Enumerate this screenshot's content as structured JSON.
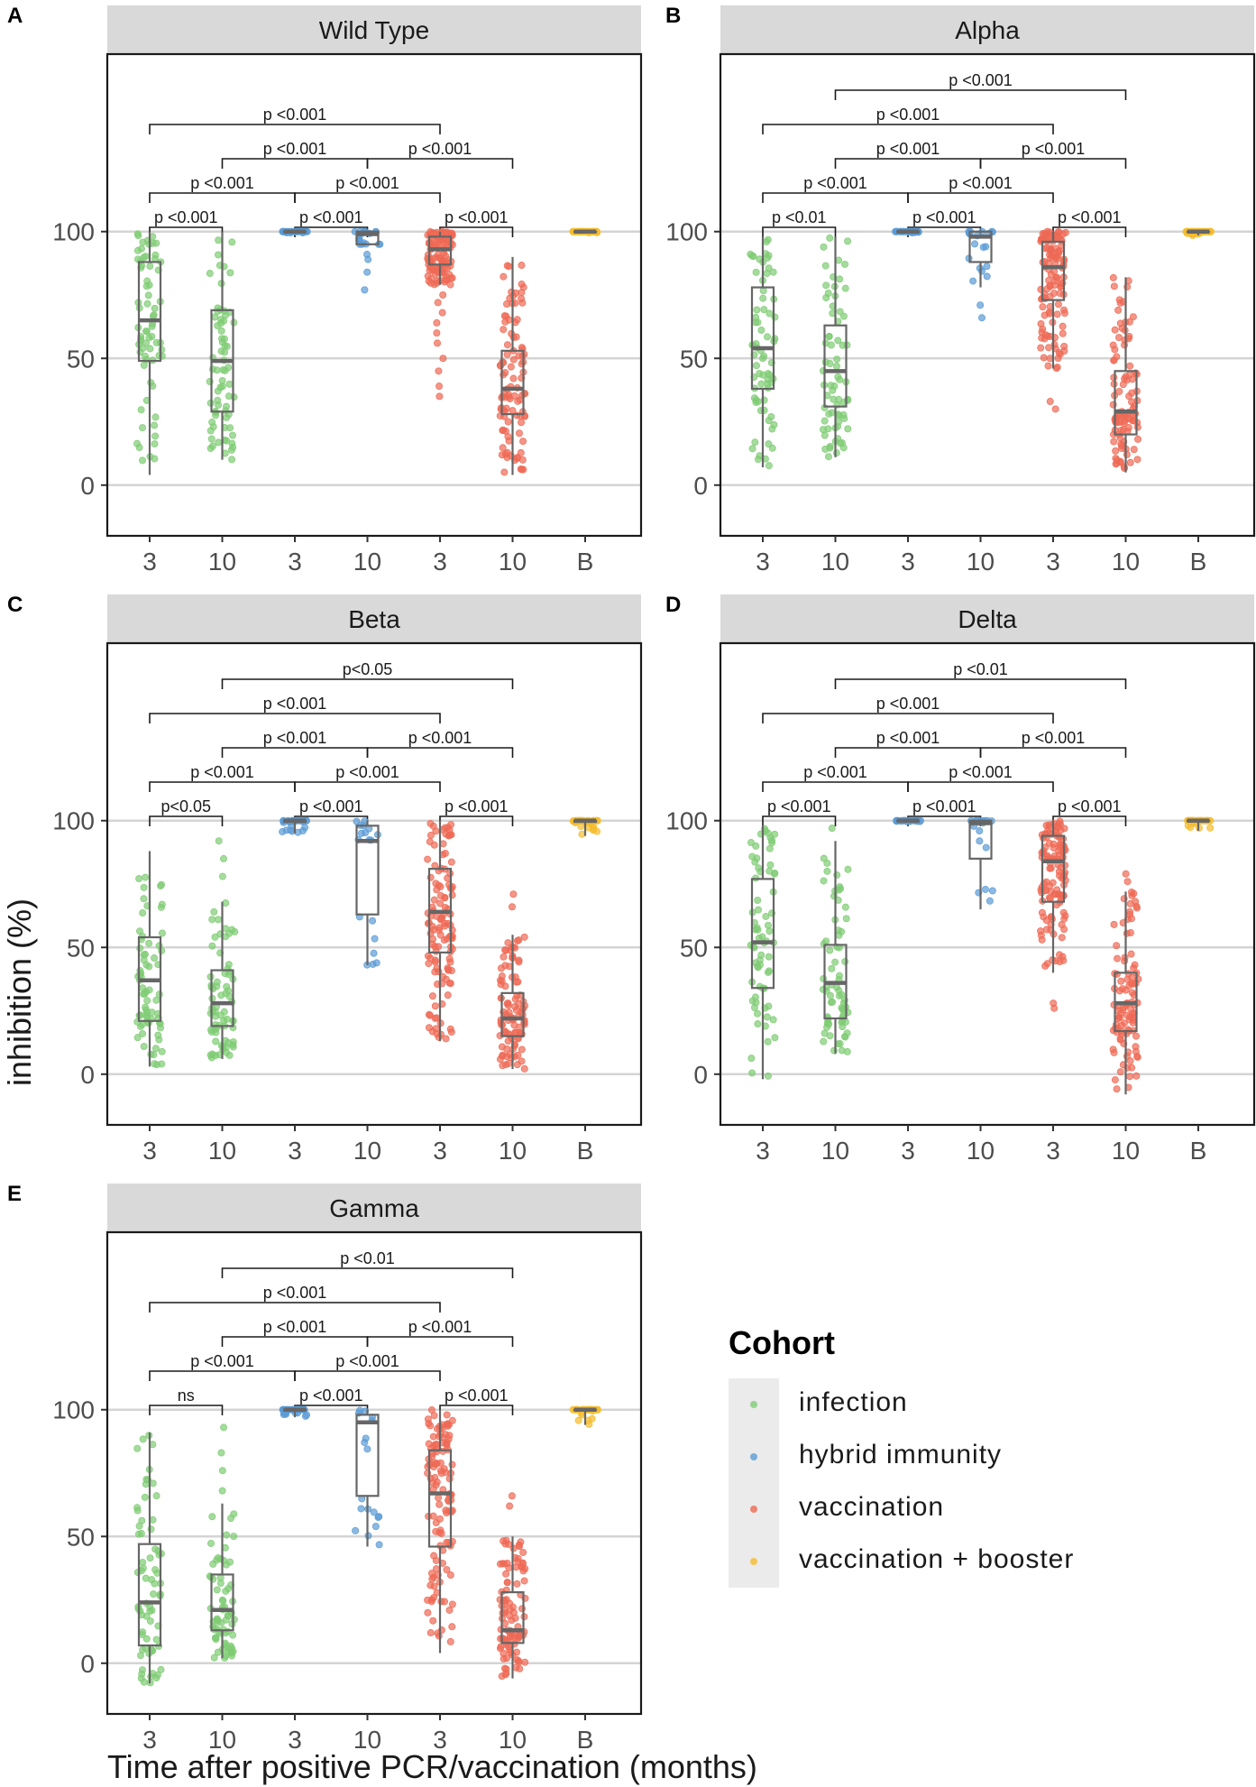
{
  "cohort_colors": {
    "infection": "#7fcc74",
    "hybrid immunity": "#5b9bd5",
    "vaccination": "#ee6a55",
    "vaccination + booster": "#f5bc2e"
  },
  "y_axis_label": "inhibition (%)",
  "x_axis_label": "Time after positive PCR/vaccination (months)",
  "legend": {
    "title": "Cohort",
    "items": [
      {
        "label": "infection",
        "color": "#7fcc74"
      },
      {
        "label": "hybrid immunity",
        "color": "#5b9bd5"
      },
      {
        "label": "vaccination",
        "color": "#ee6a55"
      },
      {
        "label": "vaccination + booster",
        "color": "#f5bc2e"
      }
    ]
  },
  "chart_data": [
    {
      "letter": "A",
      "title": "Wild Type",
      "type": "box",
      "categories": [
        "3",
        "10",
        "3",
        "10",
        "3",
        "10",
        "B"
      ],
      "cohorts": [
        "infection",
        "infection",
        "hybrid immunity",
        "hybrid immunity",
        "vaccination",
        "vaccination",
        "vaccination + booster"
      ],
      "y_ticks": [
        0,
        50,
        100
      ],
      "ylim": [
        -20,
        170
      ],
      "boxes": [
        {
          "min": 4,
          "q1": 49,
          "median": 65,
          "q3": 88,
          "max": 100,
          "n": 70,
          "outliers": []
        },
        {
          "min": 10,
          "q1": 29,
          "median": 49,
          "q3": 69,
          "max": 100,
          "n": 70,
          "outliers": []
        },
        {
          "min": 99.5,
          "q1": 100,
          "median": 100,
          "q3": 100,
          "max": 100,
          "n": 30,
          "outliers": []
        },
        {
          "min": 95,
          "q1": 95,
          "median": 99,
          "q3": 100,
          "max": 100,
          "n": 18,
          "outliers": [
            77,
            84,
            89,
            91
          ]
        },
        {
          "min": 79,
          "q1": 87,
          "median": 93,
          "q3": 98,
          "max": 100,
          "n": 120,
          "outliers": [
            35,
            39,
            45,
            50,
            56,
            60,
            64,
            68,
            72,
            75
          ]
        },
        {
          "min": 4,
          "q1": 28,
          "median": 38,
          "q3": 53,
          "max": 90,
          "n": 100,
          "outliers": []
        },
        {
          "min": 99.5,
          "q1": 100,
          "median": 100,
          "q3": 100,
          "max": 100,
          "n": 40,
          "outliers": []
        }
      ],
      "comparisons": [
        {
          "from": 0,
          "to": 1,
          "level": 0,
          "label": "p <0.001"
        },
        {
          "from": 2,
          "to": 3,
          "level": 0,
          "label": "p <0.001"
        },
        {
          "from": 4,
          "to": 5,
          "level": 0,
          "label": "p <0.001"
        },
        {
          "from": 0,
          "to": 2,
          "level": 1,
          "label": "p <0.001"
        },
        {
          "from": 2,
          "to": 4,
          "level": 1,
          "label": "p <0.001"
        },
        {
          "from": 1,
          "to": 3,
          "level": 2,
          "label": "p <0.001"
        },
        {
          "from": 3,
          "to": 5,
          "level": 2,
          "label": "p <0.001"
        },
        {
          "from": 0,
          "to": 4,
          "level": 3,
          "label": "p <0.001"
        }
      ]
    },
    {
      "letter": "B",
      "title": "Alpha",
      "type": "box",
      "categories": [
        "3",
        "10",
        "3",
        "10",
        "3",
        "10",
        "B"
      ],
      "cohorts": [
        "infection",
        "infection",
        "hybrid immunity",
        "hybrid immunity",
        "vaccination",
        "vaccination",
        "vaccination + booster"
      ],
      "y_ticks": [
        0,
        50,
        100
      ],
      "ylim": [
        -20,
        170
      ],
      "boxes": [
        {
          "min": 7,
          "q1": 38,
          "median": 54,
          "q3": 78,
          "max": 98,
          "n": 70,
          "outliers": []
        },
        {
          "min": 11,
          "q1": 31,
          "median": 45,
          "q3": 63,
          "max": 98,
          "n": 70,
          "outliers": []
        },
        {
          "min": 99.5,
          "q1": 100,
          "median": 100,
          "q3": 100,
          "max": 100,
          "n": 30,
          "outliers": []
        },
        {
          "min": 78,
          "q1": 88,
          "median": 98,
          "q3": 100,
          "max": 100,
          "n": 18,
          "outliers": [
            66,
            71
          ]
        },
        {
          "min": 46,
          "q1": 73,
          "median": 86,
          "q3": 96,
          "max": 100,
          "n": 120,
          "outliers": [
            30,
            33
          ]
        },
        {
          "min": 5,
          "q1": 20,
          "median": 29,
          "q3": 45,
          "max": 82,
          "n": 100,
          "outliers": []
        },
        {
          "min": 98.5,
          "q1": 100,
          "median": 100,
          "q3": 100,
          "max": 100,
          "n": 40,
          "outliers": []
        }
      ],
      "comparisons": [
        {
          "from": 0,
          "to": 1,
          "level": 0,
          "label": "p <0.01"
        },
        {
          "from": 2,
          "to": 3,
          "level": 0,
          "label": "p <0.001"
        },
        {
          "from": 4,
          "to": 5,
          "level": 0,
          "label": "p <0.001"
        },
        {
          "from": 0,
          "to": 2,
          "level": 1,
          "label": "p <0.001"
        },
        {
          "from": 2,
          "to": 4,
          "level": 1,
          "label": "p <0.001"
        },
        {
          "from": 1,
          "to": 3,
          "level": 2,
          "label": "p <0.001"
        },
        {
          "from": 3,
          "to": 5,
          "level": 2,
          "label": "p <0.001"
        },
        {
          "from": 0,
          "to": 4,
          "level": 3,
          "label": "p <0.001"
        },
        {
          "from": 1,
          "to": 5,
          "level": 4,
          "label": "p <0.001"
        }
      ]
    },
    {
      "letter": "C",
      "title": "Beta",
      "type": "box",
      "categories": [
        "3",
        "10",
        "3",
        "10",
        "3",
        "10",
        "B"
      ],
      "cohorts": [
        "infection",
        "infection",
        "hybrid immunity",
        "hybrid immunity",
        "vaccination",
        "vaccination",
        "vaccination + booster"
      ],
      "y_ticks": [
        0,
        50,
        100
      ],
      "ylim": [
        -20,
        170
      ],
      "boxes": [
        {
          "min": 3,
          "q1": 21,
          "median": 37,
          "q3": 54,
          "max": 88,
          "n": 70,
          "outliers": []
        },
        {
          "min": 6,
          "q1": 19,
          "median": 28,
          "q3": 41,
          "max": 68,
          "n": 70,
          "outliers": [
            78,
            85,
            92
          ]
        },
        {
          "min": 95,
          "q1": 99.5,
          "median": 100,
          "q3": 100,
          "max": 100,
          "n": 30,
          "outliers": []
        },
        {
          "min": 43,
          "q1": 63,
          "median": 92,
          "q3": 98,
          "max": 100,
          "n": 18,
          "outliers": []
        },
        {
          "min": 13,
          "q1": 48,
          "median": 64,
          "q3": 81,
          "max": 100,
          "n": 120,
          "outliers": []
        },
        {
          "min": 2,
          "q1": 15,
          "median": 22,
          "q3": 32,
          "max": 55,
          "n": 100,
          "outliers": [
            66,
            71
          ]
        },
        {
          "min": 94,
          "q1": 99.5,
          "median": 100,
          "q3": 100,
          "max": 100,
          "n": 40,
          "outliers": []
        }
      ],
      "comparisons": [
        {
          "from": 0,
          "to": 1,
          "level": 0,
          "label": "p<0.05"
        },
        {
          "from": 2,
          "to": 3,
          "level": 0,
          "label": "p <0.001"
        },
        {
          "from": 4,
          "to": 5,
          "level": 0,
          "label": "p <0.001"
        },
        {
          "from": 0,
          "to": 2,
          "level": 1,
          "label": "p <0.001"
        },
        {
          "from": 2,
          "to": 4,
          "level": 1,
          "label": "p <0.001"
        },
        {
          "from": 1,
          "to": 3,
          "level": 2,
          "label": "p <0.001"
        },
        {
          "from": 3,
          "to": 5,
          "level": 2,
          "label": "p <0.001"
        },
        {
          "from": 0,
          "to": 4,
          "level": 3,
          "label": "p <0.001"
        },
        {
          "from": 1,
          "to": 5,
          "level": 4,
          "label": "p<0.05"
        }
      ]
    },
    {
      "letter": "D",
      "title": "Delta",
      "type": "box",
      "categories": [
        "3",
        "10",
        "3",
        "10",
        "3",
        "10",
        "B"
      ],
      "cohorts": [
        "infection",
        "infection",
        "hybrid immunity",
        "hybrid immunity",
        "vaccination",
        "vaccination",
        "vaccination + booster"
      ],
      "y_ticks": [
        0,
        50,
        100
      ],
      "ylim": [
        -20,
        170
      ],
      "boxes": [
        {
          "min": -2,
          "q1": 34,
          "median": 52,
          "q3": 77,
          "max": 98,
          "n": 70,
          "outliers": []
        },
        {
          "min": 8,
          "q1": 22,
          "median": 36,
          "q3": 51,
          "max": 92,
          "n": 70,
          "outliers": [
            97
          ]
        },
        {
          "min": 99.5,
          "q1": 100,
          "median": 100,
          "q3": 100,
          "max": 100,
          "n": 30,
          "outliers": []
        },
        {
          "min": 65,
          "q1": 85,
          "median": 99,
          "q3": 100,
          "max": 100,
          "n": 18,
          "outliers": []
        },
        {
          "min": 40,
          "q1": 68,
          "median": 84,
          "q3": 94,
          "max": 100,
          "n": 120,
          "outliers": [
            26,
            28
          ]
        },
        {
          "min": -8,
          "q1": 17,
          "median": 28,
          "q3": 40,
          "max": 72,
          "n": 100,
          "outliers": [
            76,
            79
          ]
        },
        {
          "min": 96,
          "q1": 100,
          "median": 100,
          "q3": 100,
          "max": 100,
          "n": 40,
          "outliers": []
        }
      ],
      "comparisons": [
        {
          "from": 0,
          "to": 1,
          "level": 0,
          "label": "p <0.001"
        },
        {
          "from": 2,
          "to": 3,
          "level": 0,
          "label": "p <0.001"
        },
        {
          "from": 4,
          "to": 5,
          "level": 0,
          "label": "p <0.001"
        },
        {
          "from": 0,
          "to": 2,
          "level": 1,
          "label": "p <0.001"
        },
        {
          "from": 2,
          "to": 4,
          "level": 1,
          "label": "p <0.001"
        },
        {
          "from": 1,
          "to": 3,
          "level": 2,
          "label": "p <0.001"
        },
        {
          "from": 3,
          "to": 5,
          "level": 2,
          "label": "p <0.001"
        },
        {
          "from": 0,
          "to": 4,
          "level": 3,
          "label": "p <0.001"
        },
        {
          "from": 1,
          "to": 5,
          "level": 4,
          "label": "p <0.01"
        }
      ]
    },
    {
      "letter": "E",
      "title": "Gamma",
      "type": "box",
      "categories": [
        "3",
        "10",
        "3",
        "10",
        "3",
        "10",
        "B"
      ],
      "cohorts": [
        "infection",
        "infection",
        "hybrid immunity",
        "hybrid immunity",
        "vaccination",
        "vaccination",
        "vaccination + booster"
      ],
      "y_ticks": [
        0,
        50,
        100
      ],
      "ylim": [
        -20,
        170
      ],
      "boxes": [
        {
          "min": -8,
          "q1": 7,
          "median": 24,
          "q3": 47,
          "max": 91,
          "n": 70,
          "outliers": []
        },
        {
          "min": 2,
          "q1": 13,
          "median": 21,
          "q3": 35,
          "max": 63,
          "n": 70,
          "outliers": [
            68,
            76,
            83,
            93
          ]
        },
        {
          "min": 97,
          "q1": 100,
          "median": 100,
          "q3": 100,
          "max": 100,
          "n": 30,
          "outliers": []
        },
        {
          "min": 46,
          "q1": 66,
          "median": 95,
          "q3": 98,
          "max": 100,
          "n": 18,
          "outliers": []
        },
        {
          "min": 4,
          "q1": 46,
          "median": 67,
          "q3": 84,
          "max": 100,
          "n": 120,
          "outliers": []
        },
        {
          "min": -6,
          "q1": 8,
          "median": 13,
          "q3": 28,
          "max": 50,
          "n": 100,
          "outliers": [
            62,
            66
          ]
        },
        {
          "min": 94,
          "q1": 100,
          "median": 100,
          "q3": 100,
          "max": 100,
          "n": 40,
          "outliers": []
        }
      ],
      "comparisons": [
        {
          "from": 0,
          "to": 1,
          "level": 0,
          "label": "ns"
        },
        {
          "from": 2,
          "to": 3,
          "level": 0,
          "label": "p <0.001"
        },
        {
          "from": 4,
          "to": 5,
          "level": 0,
          "label": "p <0.001"
        },
        {
          "from": 0,
          "to": 2,
          "level": 1,
          "label": "p <0.001"
        },
        {
          "from": 2,
          "to": 4,
          "level": 1,
          "label": "p <0.001"
        },
        {
          "from": 1,
          "to": 3,
          "level": 2,
          "label": "p <0.001"
        },
        {
          "from": 3,
          "to": 5,
          "level": 2,
          "label": "p <0.001"
        },
        {
          "from": 0,
          "to": 4,
          "level": 3,
          "label": "p <0.001"
        },
        {
          "from": 1,
          "to": 5,
          "level": 4,
          "label": "p <0.01"
        }
      ]
    }
  ]
}
